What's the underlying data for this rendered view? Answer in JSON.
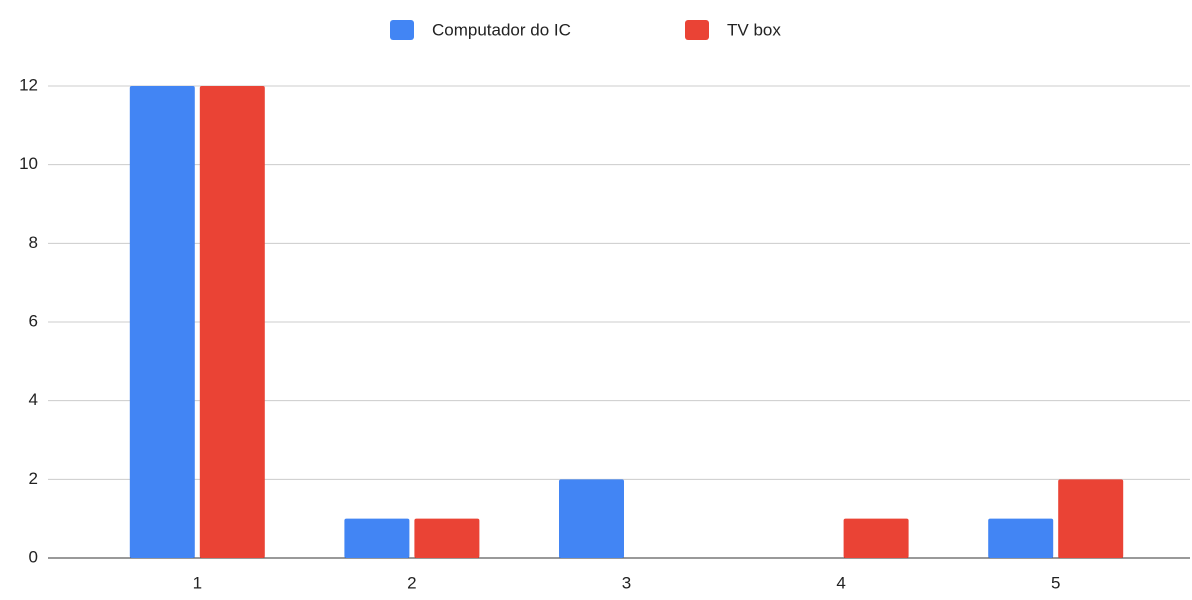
{
  "chart_data": {
    "type": "bar",
    "categories": [
      "1",
      "2",
      "3",
      "4",
      "5"
    ],
    "series": [
      {
        "name": "Computador do IC",
        "color": "#4285f4",
        "values": [
          12,
          1,
          2,
          0,
          1
        ]
      },
      {
        "name": "TV box",
        "color": "#ea4335",
        "values": [
          12,
          1,
          0,
          1,
          2
        ]
      }
    ],
    "ylim": [
      0,
      12
    ],
    "yticks": [
      0,
      2,
      4,
      6,
      8,
      10,
      12
    ],
    "grid": true,
    "legend": "top"
  }
}
